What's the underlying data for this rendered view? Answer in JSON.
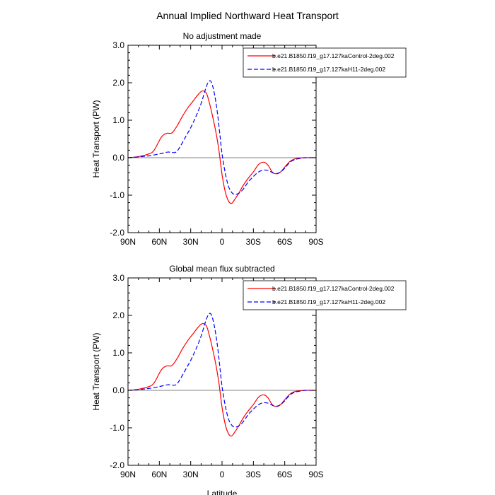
{
  "figure": {
    "title": "Annual Implied Northward Heat Transport"
  },
  "chart_data": [
    {
      "type": "line",
      "title": "No adjustment made",
      "xlabel": "",
      "ylabel": "Heat Transport (PW)",
      "xlim": [
        -90,
        90
      ],
      "ylim": [
        -2.0,
        3.0
      ],
      "x_ticks": [
        -90,
        -60,
        -30,
        0,
        30,
        60,
        90
      ],
      "x_tick_labels": [
        "90N",
        "60N",
        "30N",
        "0",
        "30S",
        "60S",
        "90S"
      ],
      "y_ticks": [
        -2,
        -1,
        0,
        1,
        2,
        3
      ],
      "y_tick_labels": [
        "-2.0",
        "-1.0",
        "0.0",
        "1.0",
        "2.0",
        "3.0"
      ],
      "zero_line": true,
      "legend": {
        "placement": "top-right"
      },
      "series": [
        {
          "name": "b.e21.B1850.f19_g17.127kaControl-2deg.002",
          "color": "#ff0000",
          "dash": "solid",
          "x": [
            -90,
            -80,
            -70,
            -65,
            -58,
            -53,
            -48,
            -43,
            -38,
            -33,
            -28,
            -23,
            -19,
            -15,
            -12,
            -9,
            -6,
            -3,
            0,
            3,
            6,
            9,
            12,
            16,
            20,
            25,
            30,
            35,
            40,
            44,
            48,
            52,
            56,
            60,
            65,
            70,
            75,
            80,
            90
          ],
          "y": [
            0.0,
            0.03,
            0.1,
            0.2,
            0.55,
            0.65,
            0.66,
            0.85,
            1.1,
            1.32,
            1.5,
            1.68,
            1.78,
            1.72,
            1.45,
            1.1,
            0.7,
            0.2,
            -0.45,
            -0.9,
            -1.15,
            -1.22,
            -1.12,
            -0.95,
            -0.75,
            -0.55,
            -0.38,
            -0.18,
            -0.12,
            -0.2,
            -0.38,
            -0.43,
            -0.38,
            -0.25,
            -0.1,
            -0.03,
            -0.01,
            0.0,
            0.0
          ]
        },
        {
          "name": "b.e21.B1850.f19_g17.127kaH11-2deg.002",
          "color": "#0000ff",
          "dash": "dashed",
          "x": [
            -90,
            -80,
            -70,
            -60,
            -52,
            -48,
            -44,
            -40,
            -35,
            -30,
            -25,
            -20,
            -15,
            -12,
            -10,
            -8,
            -6,
            -4,
            -2,
            0,
            3,
            6,
            9,
            12,
            16,
            20,
            25,
            30,
            35,
            40,
            45,
            50,
            55,
            60,
            65,
            70,
            75,
            80,
            90
          ],
          "y": [
            0.0,
            0.02,
            0.05,
            0.1,
            0.15,
            0.14,
            0.15,
            0.3,
            0.55,
            0.8,
            1.1,
            1.45,
            1.9,
            2.05,
            2.0,
            1.8,
            1.5,
            1.1,
            0.6,
            0.1,
            -0.4,
            -0.75,
            -0.92,
            -0.98,
            -0.95,
            -0.85,
            -0.65,
            -0.5,
            -0.38,
            -0.33,
            -0.35,
            -0.42,
            -0.4,
            -0.28,
            -0.12,
            -0.05,
            -0.02,
            0.0,
            0.0
          ]
        }
      ]
    },
    {
      "type": "line",
      "title": "Global mean flux subtracted",
      "xlabel": "Latitude",
      "ylabel": "Heat Transport (PW)",
      "xlim": [
        -90,
        90
      ],
      "ylim": [
        -2.0,
        3.0
      ],
      "x_ticks": [
        -90,
        -60,
        -30,
        0,
        30,
        60,
        90
      ],
      "x_tick_labels": [
        "90N",
        "60N",
        "30N",
        "0",
        "30S",
        "60S",
        "90S"
      ],
      "y_ticks": [
        -2,
        -1,
        0,
        1,
        2,
        3
      ],
      "y_tick_labels": [
        "-2.0",
        "-1.0",
        "0.0",
        "1.0",
        "2.0",
        "3.0"
      ],
      "zero_line": true,
      "legend": {
        "placement": "top-right"
      },
      "series": [
        {
          "name": "b.e21.B1850.f19_g17.127kaControl-2deg.002",
          "color": "#ff0000",
          "dash": "solid",
          "x": [
            -90,
            -80,
            -70,
            -65,
            -58,
            -53,
            -48,
            -43,
            -38,
            -33,
            -28,
            -23,
            -19,
            -15,
            -12,
            -9,
            -6,
            -3,
            0,
            3,
            6,
            9,
            12,
            16,
            20,
            25,
            30,
            35,
            40,
            44,
            48,
            52,
            56,
            60,
            65,
            70,
            75,
            80,
            90
          ],
          "y": [
            0.0,
            0.03,
            0.1,
            0.2,
            0.55,
            0.65,
            0.66,
            0.85,
            1.1,
            1.32,
            1.5,
            1.68,
            1.78,
            1.72,
            1.45,
            1.1,
            0.7,
            0.2,
            -0.45,
            -0.9,
            -1.15,
            -1.22,
            -1.12,
            -0.95,
            -0.75,
            -0.55,
            -0.38,
            -0.18,
            -0.12,
            -0.2,
            -0.38,
            -0.43,
            -0.38,
            -0.25,
            -0.1,
            -0.03,
            -0.01,
            0.0,
            0.0
          ]
        },
        {
          "name": "b.e21.B1850.f19_g17.127kaH11-2deg.002",
          "color": "#0000ff",
          "dash": "dashed",
          "x": [
            -90,
            -80,
            -70,
            -60,
            -52,
            -48,
            -44,
            -40,
            -35,
            -30,
            -25,
            -20,
            -15,
            -12,
            -10,
            -8,
            -6,
            -4,
            -2,
            0,
            3,
            6,
            9,
            12,
            16,
            20,
            25,
            30,
            35,
            40,
            45,
            50,
            55,
            60,
            65,
            70,
            75,
            80,
            90
          ],
          "y": [
            0.0,
            0.02,
            0.05,
            0.1,
            0.15,
            0.14,
            0.15,
            0.3,
            0.55,
            0.8,
            1.1,
            1.45,
            1.9,
            2.05,
            2.0,
            1.8,
            1.5,
            1.1,
            0.6,
            0.1,
            -0.4,
            -0.75,
            -0.92,
            -0.98,
            -0.95,
            -0.85,
            -0.65,
            -0.5,
            -0.38,
            -0.33,
            -0.35,
            -0.42,
            -0.4,
            -0.28,
            -0.12,
            -0.05,
            -0.02,
            0.0,
            0.0
          ]
        }
      ]
    }
  ]
}
